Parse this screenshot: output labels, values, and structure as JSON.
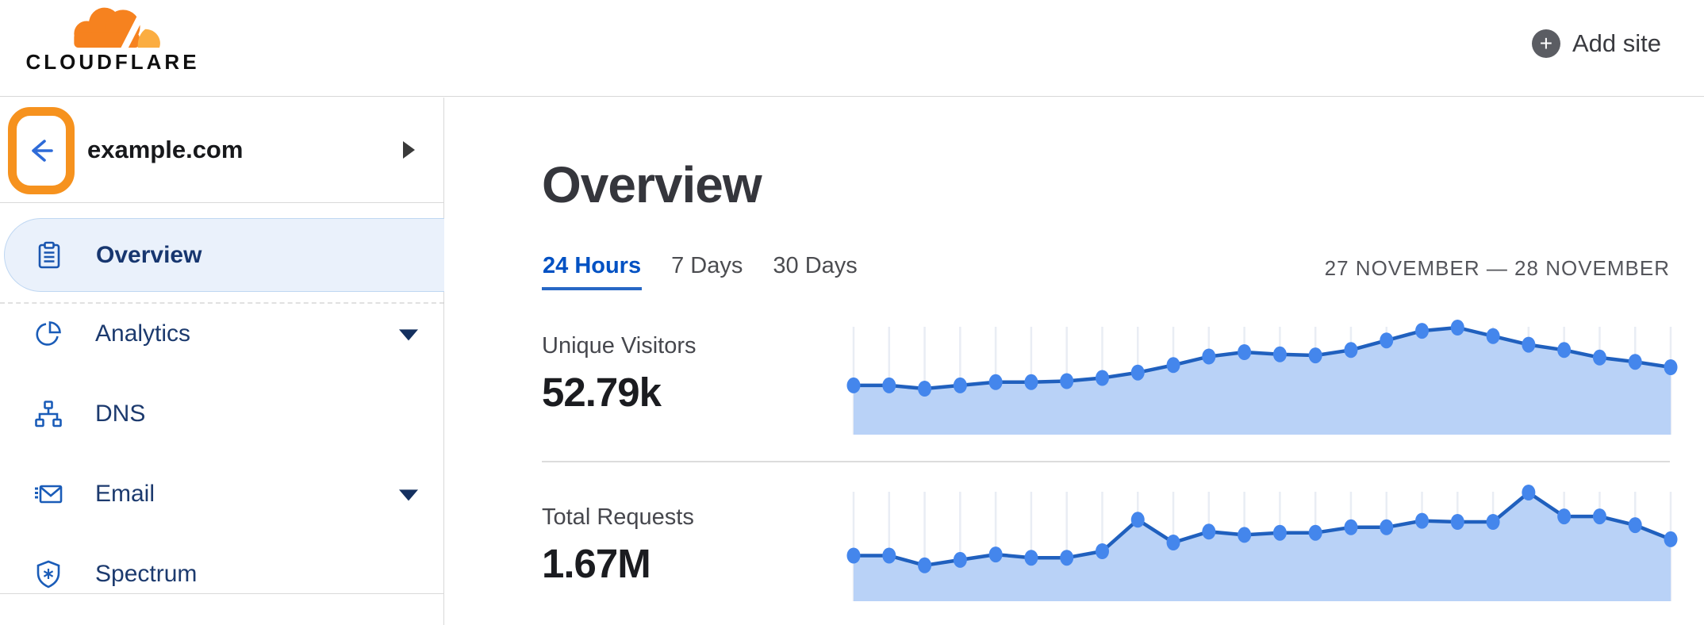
{
  "header": {
    "logo_text": "CLOUDFLARE",
    "add_site_label": "Add site"
  },
  "sidebar": {
    "site_name": "example.com",
    "items": [
      {
        "label": "Overview",
        "icon": "clipboard-icon",
        "selected": true,
        "has_dropdown": false
      },
      {
        "label": "Analytics",
        "icon": "pie-chart-icon",
        "selected": false,
        "has_dropdown": true
      },
      {
        "label": "DNS",
        "icon": "network-icon",
        "selected": false,
        "has_dropdown": false
      },
      {
        "label": "Email",
        "icon": "email-icon",
        "selected": false,
        "has_dropdown": true
      },
      {
        "label": "Spectrum",
        "icon": "shield-icon",
        "selected": false,
        "has_dropdown": false
      }
    ]
  },
  "main": {
    "title": "Overview",
    "tabs": [
      {
        "label": "24 Hours",
        "active": true
      },
      {
        "label": "7 Days",
        "active": false
      },
      {
        "label": "30 Days",
        "active": false
      }
    ],
    "date_range": "27 NOVEMBER — 28 NOVEMBER",
    "metrics": [
      {
        "label": "Unique Visitors",
        "value": "52.79k"
      },
      {
        "label": "Total Requests",
        "value": "1.67M"
      }
    ]
  },
  "colors": {
    "brand_orange": "#f6821f",
    "brand_orange_light": "#fbad41",
    "annotation_orange": "#f6921e",
    "link_blue": "#0051c3",
    "nav_text_blue": "#1c3a6e",
    "icon_blue": "#1a5cb8",
    "chart_line": "#2060be",
    "chart_dot": "#4486ec",
    "chart_fill": "#b9d2f7",
    "chart_gridline": "#e9edf4",
    "selected_pill_bg": "#eaf1fb",
    "selected_pill_border": "#bfd7f2"
  },
  "chart_data": [
    {
      "type": "area",
      "title": "Unique Visitors",
      "summary_value": "52.79k",
      "x_description": "24 hourly intervals, 27 November — 28 November",
      "y_description": "relative height (no y-axis labels shown), percent of series maximum",
      "grid": "vertical gridlines only, one per point",
      "legend": "none",
      "points_relative": [
        46,
        46,
        43,
        46,
        49,
        49,
        50,
        53,
        58,
        65,
        73,
        77,
        75,
        74,
        79,
        88,
        97,
        100,
        92,
        84,
        79,
        72,
        68,
        63
      ]
    },
    {
      "type": "area",
      "title": "Total Requests",
      "summary_value": "1.67M",
      "x_description": "24 hourly intervals, 27 November — 28 November",
      "y_description": "relative height (no y-axis labels shown), percent of series maximum",
      "grid": "vertical gridlines only, one per point",
      "legend": "none",
      "points_relative": [
        42,
        42,
        33,
        38,
        43,
        40,
        40,
        46,
        75,
        54,
        64,
        61,
        63,
        63,
        68,
        68,
        74,
        73,
        73,
        100,
        78,
        78,
        70,
        57
      ]
    }
  ]
}
